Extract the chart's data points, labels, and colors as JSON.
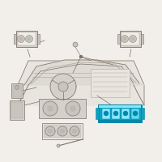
{
  "bg_color": "#f2eeea",
  "line_color": "#b0a898",
  "dark_line": "#7a7068",
  "med_line": "#9a9088",
  "highlight_color": "#18b8d8",
  "highlight_dark": "#0088aa",
  "highlight_mid": "#10a0c0",
  "highlight_light": "#60d8f0",
  "highlight_bright": "#88e8ff",
  "dash_fill": "#e8e4de",
  "dash_fill2": "#dedad4",
  "comp_fill": "#d4d0ca",
  "comp_fill2": "#c8c4be",
  "comp_fill3": "#bcb8b2",
  "white_ish": "#f0ece6",
  "figsize": [
    2.0,
    2.0
  ],
  "dpi": 100
}
